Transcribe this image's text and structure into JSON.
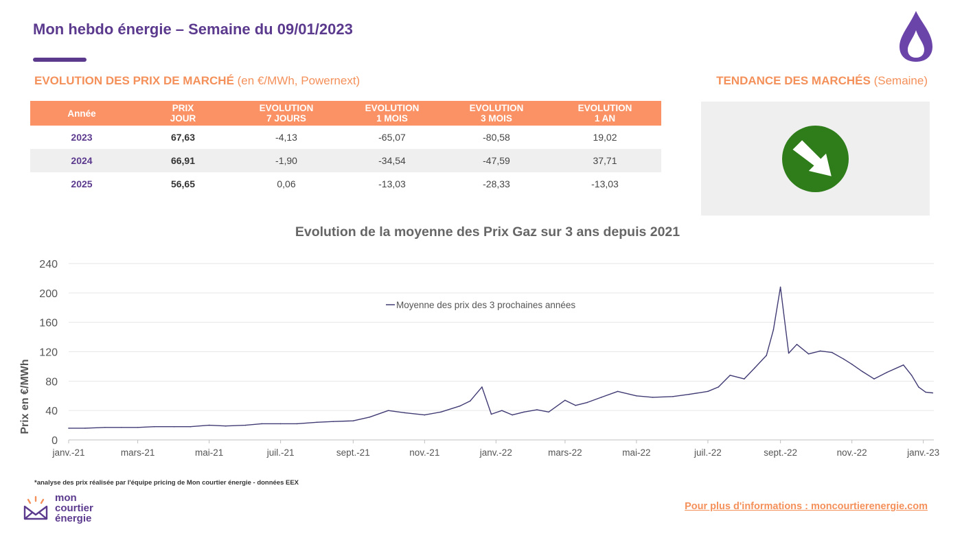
{
  "header": {
    "title": "Mon hebdo énergie – Semaine du 09/01/2023"
  },
  "section_prices": {
    "label_bold": "EVOLUTION DES PRIX DE MARCHÉ",
    "label_light": " (en €/MWh, Powernext)"
  },
  "section_trend": {
    "label_bold": "TENDANCE DES MARCHÉS",
    "label_light": " (Semaine)"
  },
  "table": {
    "headers": [
      [
        "Année",
        ""
      ],
      [
        "PRIX",
        "JOUR"
      ],
      [
        "EVOLUTION",
        "7 JOURS"
      ],
      [
        "EVOLUTION",
        "1 MOIS"
      ],
      [
        "EVOLUTION",
        "3 MOIS"
      ],
      [
        "EVOLUTION",
        "1 AN"
      ]
    ],
    "rows": [
      {
        "year": "2023",
        "prix_jour": "67,63",
        "evo_7j": "-4,13",
        "evo_1m": "-65,07",
        "evo_3m": "-80,58",
        "evo_1a": "19,02"
      },
      {
        "year": "2024",
        "prix_jour": "66,91",
        "evo_7j": "-1,90",
        "evo_1m": "-34,54",
        "evo_3m": "-47,59",
        "evo_1a": "37,71"
      },
      {
        "year": "2025",
        "prix_jour": "56,65",
        "evo_7j": "0,06",
        "evo_1m": "-13,03",
        "evo_3m": "-28,33",
        "evo_1a": "-13,03"
      }
    ]
  },
  "trend": {
    "icon": "arrow-down-right-icon",
    "color": "#2e7d1a"
  },
  "colors": {
    "brand": "#5b3a8e",
    "accent": "#f4905a",
    "table_header": "#fa9265",
    "line": "#3f3a73"
  },
  "chart_data": {
    "type": "line",
    "title": "Evolution de la moyenne des Prix Gaz sur 3 ans depuis 2021",
    "xlabel": "",
    "ylabel": "Prix en €/MWh",
    "ylim": [
      0,
      240
    ],
    "yticks": [
      0,
      40,
      80,
      120,
      160,
      200,
      240
    ],
    "xticks": [
      "janv.-21",
      "mars-21",
      "mai-21",
      "juil.-21",
      "sept.-21",
      "nov.-21",
      "janv.-22",
      "mars-22",
      "mai-22",
      "juil.-22",
      "sept.-22",
      "nov.-22",
      "janv.-23"
    ],
    "grid": true,
    "legend_position": "top-center",
    "series": [
      {
        "name": "Moyenne des prix des 3 prochaines années",
        "x": [
          "2021-01-01",
          "2021-01-15",
          "2021-02-01",
          "2021-02-15",
          "2021-03-01",
          "2021-03-15",
          "2021-04-01",
          "2021-04-15",
          "2021-05-01",
          "2021-05-15",
          "2021-06-01",
          "2021-06-15",
          "2021-07-01",
          "2021-07-15",
          "2021-08-01",
          "2021-08-15",
          "2021-09-01",
          "2021-09-15",
          "2021-10-01",
          "2021-10-15",
          "2021-11-01",
          "2021-11-15",
          "2021-12-01",
          "2021-12-10",
          "2021-12-20",
          "2021-12-28",
          "2022-01-06",
          "2022-01-15",
          "2022-01-25",
          "2022-02-05",
          "2022-02-15",
          "2022-03-01",
          "2022-03-10",
          "2022-03-20",
          "2022-04-01",
          "2022-04-15",
          "2022-05-01",
          "2022-05-15",
          "2022-06-01",
          "2022-06-15",
          "2022-07-01",
          "2022-07-10",
          "2022-07-20",
          "2022-08-01",
          "2022-08-10",
          "2022-08-20",
          "2022-08-26",
          "2022-09-01",
          "2022-09-08",
          "2022-09-15",
          "2022-09-25",
          "2022-10-05",
          "2022-10-15",
          "2022-10-25",
          "2022-11-01",
          "2022-11-10",
          "2022-11-20",
          "2022-12-01",
          "2022-12-15",
          "2022-12-22",
          "2022-12-28",
          "2023-01-03",
          "2023-01-09"
        ],
        "values": [
          16,
          16,
          17,
          17,
          17,
          18,
          18,
          18,
          20,
          19,
          20,
          22,
          22,
          22,
          24,
          25,
          26,
          31,
          40,
          37,
          34,
          38,
          46,
          53,
          72,
          35,
          40,
          34,
          38,
          41,
          38,
          54,
          47,
          51,
          58,
          66,
          60,
          58,
          59,
          62,
          66,
          72,
          88,
          83,
          98,
          115,
          150,
          208,
          118,
          130,
          117,
          121,
          119,
          110,
          103,
          93,
          83,
          92,
          102,
          88,
          72,
          65,
          64
        ]
      }
    ]
  },
  "footnote": "*analyse des prix réalisée par l'équipe pricing de Mon courtier énergie -  données EEX",
  "logo": {
    "line1": "mon",
    "line2": "courtier",
    "line3": "énergie"
  },
  "more_info": "Pour plus d'informations : moncourtierenergie.com"
}
